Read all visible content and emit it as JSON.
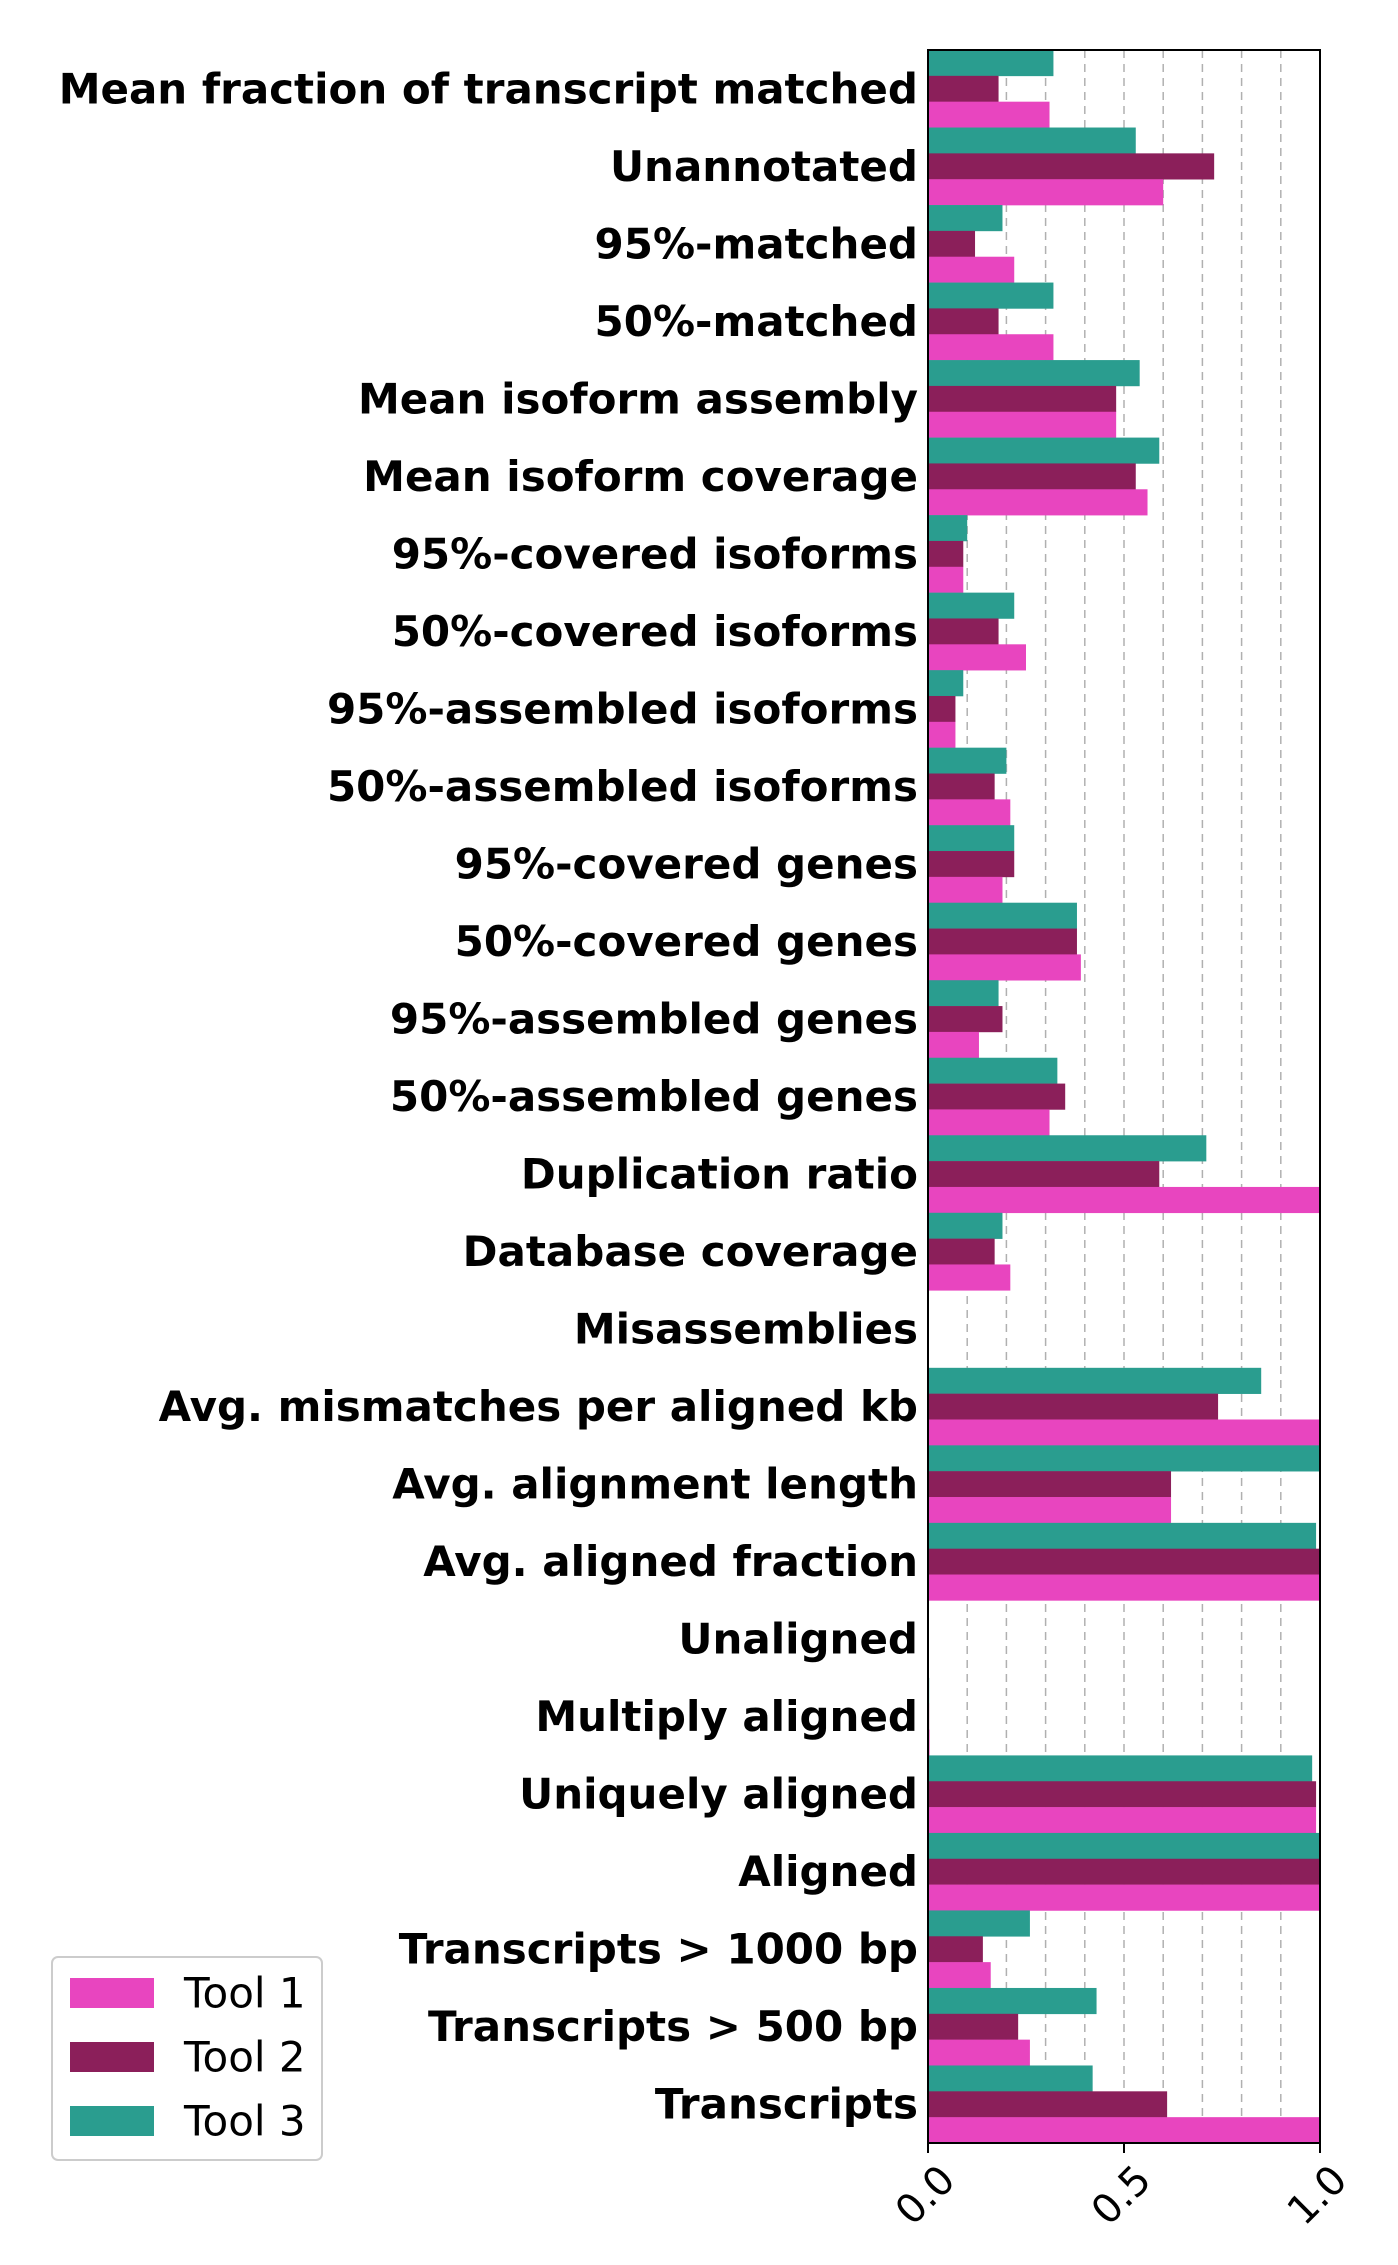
{
  "chart_data": {
    "type": "bar",
    "orientation": "horizontal",
    "title": "",
    "xlabel": "",
    "ylabel": "",
    "xlim": [
      0,
      1.0
    ],
    "xticks": [
      "0.0",
      "0.5",
      "1.0"
    ],
    "grid": "vertical dashed, every 0.1",
    "legend_placement": "bottom-left",
    "categories": [
      "Mean fraction of transcript matched",
      "Unannotated",
      "95%-matched",
      "50%-matched",
      "Mean isoform assembly",
      "Mean isoform coverage",
      "95%-covered isoforms",
      "50%-covered isoforms",
      "95%-assembled isoforms",
      "50%-assembled isoforms",
      "95%-covered genes",
      "50%-covered genes",
      "95%-assembled genes",
      "50%-assembled genes",
      "Duplication ratio",
      "Database coverage",
      "Misassemblies",
      "Avg. mismatches per aligned kb",
      "Avg. alignment length",
      "Avg. aligned fraction",
      "Unaligned",
      "Multiply aligned",
      "Uniquely aligned",
      "Aligned",
      "Transcripts > 1000 bp",
      "Transcripts > 500 bp",
      "Transcripts"
    ],
    "series": [
      {
        "name": "Tool 1",
        "color": "#e845bf",
        "values": [
          0.31,
          0.6,
          0.22,
          0.32,
          0.48,
          0.56,
          0.09,
          0.25,
          0.07,
          0.21,
          0.19,
          0.39,
          0.13,
          0.31,
          1.0,
          0.21,
          0.0,
          1.0,
          0.62,
          1.0,
          0.0,
          0.004,
          0.99,
          1.0,
          0.16,
          0.26,
          1.0
        ]
      },
      {
        "name": "Tool 2",
        "color": "#8b1f5a",
        "values": [
          0.18,
          0.73,
          0.12,
          0.18,
          0.48,
          0.53,
          0.09,
          0.18,
          0.07,
          0.17,
          0.22,
          0.38,
          0.19,
          0.35,
          0.59,
          0.17,
          0.0,
          0.74,
          0.62,
          1.0,
          0.0,
          0.003,
          0.99,
          1.0,
          0.14,
          0.23,
          0.61
        ]
      },
      {
        "name": "Tool 3",
        "color": "#2a9d8f",
        "values": [
          0.32,
          0.53,
          0.19,
          0.32,
          0.54,
          0.59,
          0.1,
          0.22,
          0.09,
          0.2,
          0.22,
          0.38,
          0.18,
          0.33,
          0.71,
          0.19,
          0.0,
          0.85,
          1.0,
          0.99,
          0.0,
          0.003,
          0.98,
          1.0,
          0.26,
          0.43,
          0.42
        ]
      }
    ]
  }
}
